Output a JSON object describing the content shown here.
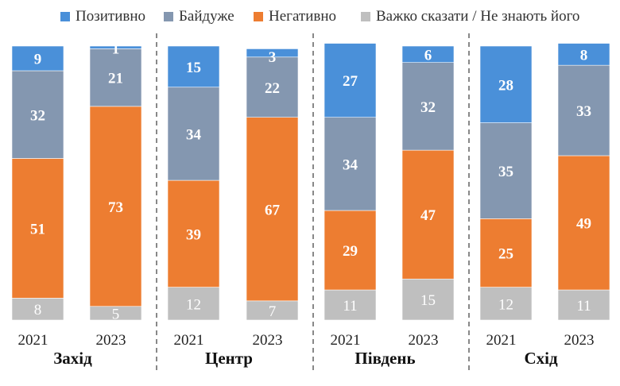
{
  "chart_data": {
    "type": "bar",
    "stacked": true,
    "percent": true,
    "legend": {
      "placement": "top",
      "entries": [
        {
          "name": "Позитивно",
          "color": "#4a90d9"
        },
        {
          "name": "Байдуже",
          "color": "#8497b0"
        },
        {
          "name": "Негативно",
          "color": "#ed7d31"
        },
        {
          "name": "Важко сказати / Не знають його",
          "color": "#bfbfbf"
        }
      ]
    },
    "series_order_top_to_bottom": [
      "Позитивно",
      "Байдуже",
      "Негативно",
      "Важко сказати / Не знають його"
    ],
    "groups": [
      {
        "region": "Захід",
        "bars": [
          {
            "year": "2021",
            "values": [
              9,
              32,
              51,
              8
            ]
          },
          {
            "year": "2023",
            "values": [
              1,
              21,
              73,
              5
            ]
          }
        ]
      },
      {
        "region": "Центр",
        "bars": [
          {
            "year": "2021",
            "values": [
              15,
              34,
              39,
              12
            ]
          },
          {
            "year": "2023",
            "values": [
              3,
              22,
              67,
              7
            ]
          }
        ]
      },
      {
        "region": "Південь",
        "bars": [
          {
            "year": "2021",
            "values": [
              27,
              34,
              29,
              11
            ]
          },
          {
            "year": "2023",
            "values": [
              6,
              32,
              47,
              15
            ]
          }
        ]
      },
      {
        "region": "Схід",
        "bars": [
          {
            "year": "2021",
            "values": [
              28,
              35,
              25,
              12
            ]
          },
          {
            "year": "2023",
            "values": [
              8,
              33,
              49,
              11
            ]
          }
        ]
      }
    ]
  }
}
